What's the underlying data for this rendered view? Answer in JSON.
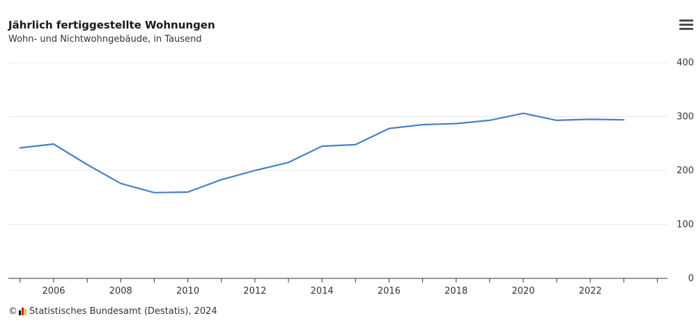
{
  "colors": {
    "line": "#4a7fc7",
    "grid": "#e8e8e8",
    "axis": "#333333",
    "logo_black": "#000000",
    "logo_red": "#d00000",
    "logo_gold": "#f5b800"
  },
  "header": {
    "title": "Jährlich fertiggestellte Wohnungen",
    "subtitle": "Wohn- und Nichtwohngebäude, in Tausend",
    "menu_icon": "hamburger-menu-icon"
  },
  "footer": {
    "copyright_symbol": "©",
    "logo_icon": "destatis-logo-icon",
    "source": "Statistisches Bundesamt (Destatis), 2024"
  },
  "chart_data": {
    "type": "line",
    "title": "Jährlich fertiggestellte Wohnungen",
    "subtitle": "Wohn- und Nichtwohngebäude, in Tausend",
    "x": [
      2005,
      2006,
      2007,
      2008,
      2009,
      2010,
      2011,
      2012,
      2013,
      2014,
      2015,
      2016,
      2017,
      2018,
      2019,
      2020,
      2021,
      2022,
      2023
    ],
    "series": [
      {
        "values": [
          242,
          249,
          211,
          176,
          159,
          160,
          183,
          200,
          215,
          245,
          248,
          278,
          285,
          287,
          293,
          306,
          293,
          295,
          294
        ]
      }
    ],
    "xticks": [
      2006,
      2008,
      2010,
      2012,
      2014,
      2016,
      2018,
      2020,
      2022
    ],
    "xtick_labels": [
      "2006",
      "2008",
      "2010",
      "2012",
      "2014",
      "2016",
      "2018",
      "2020",
      "2022"
    ],
    "yticks": [
      0,
      100,
      200,
      300,
      400
    ],
    "ytick_labels": [
      "0",
      "100",
      "200",
      "300",
      "400"
    ],
    "xlim": [
      2004.65,
      2024.3
    ],
    "ylim": [
      0,
      400
    ],
    "grid": true,
    "yaxis_side": "right",
    "legend": "none"
  }
}
